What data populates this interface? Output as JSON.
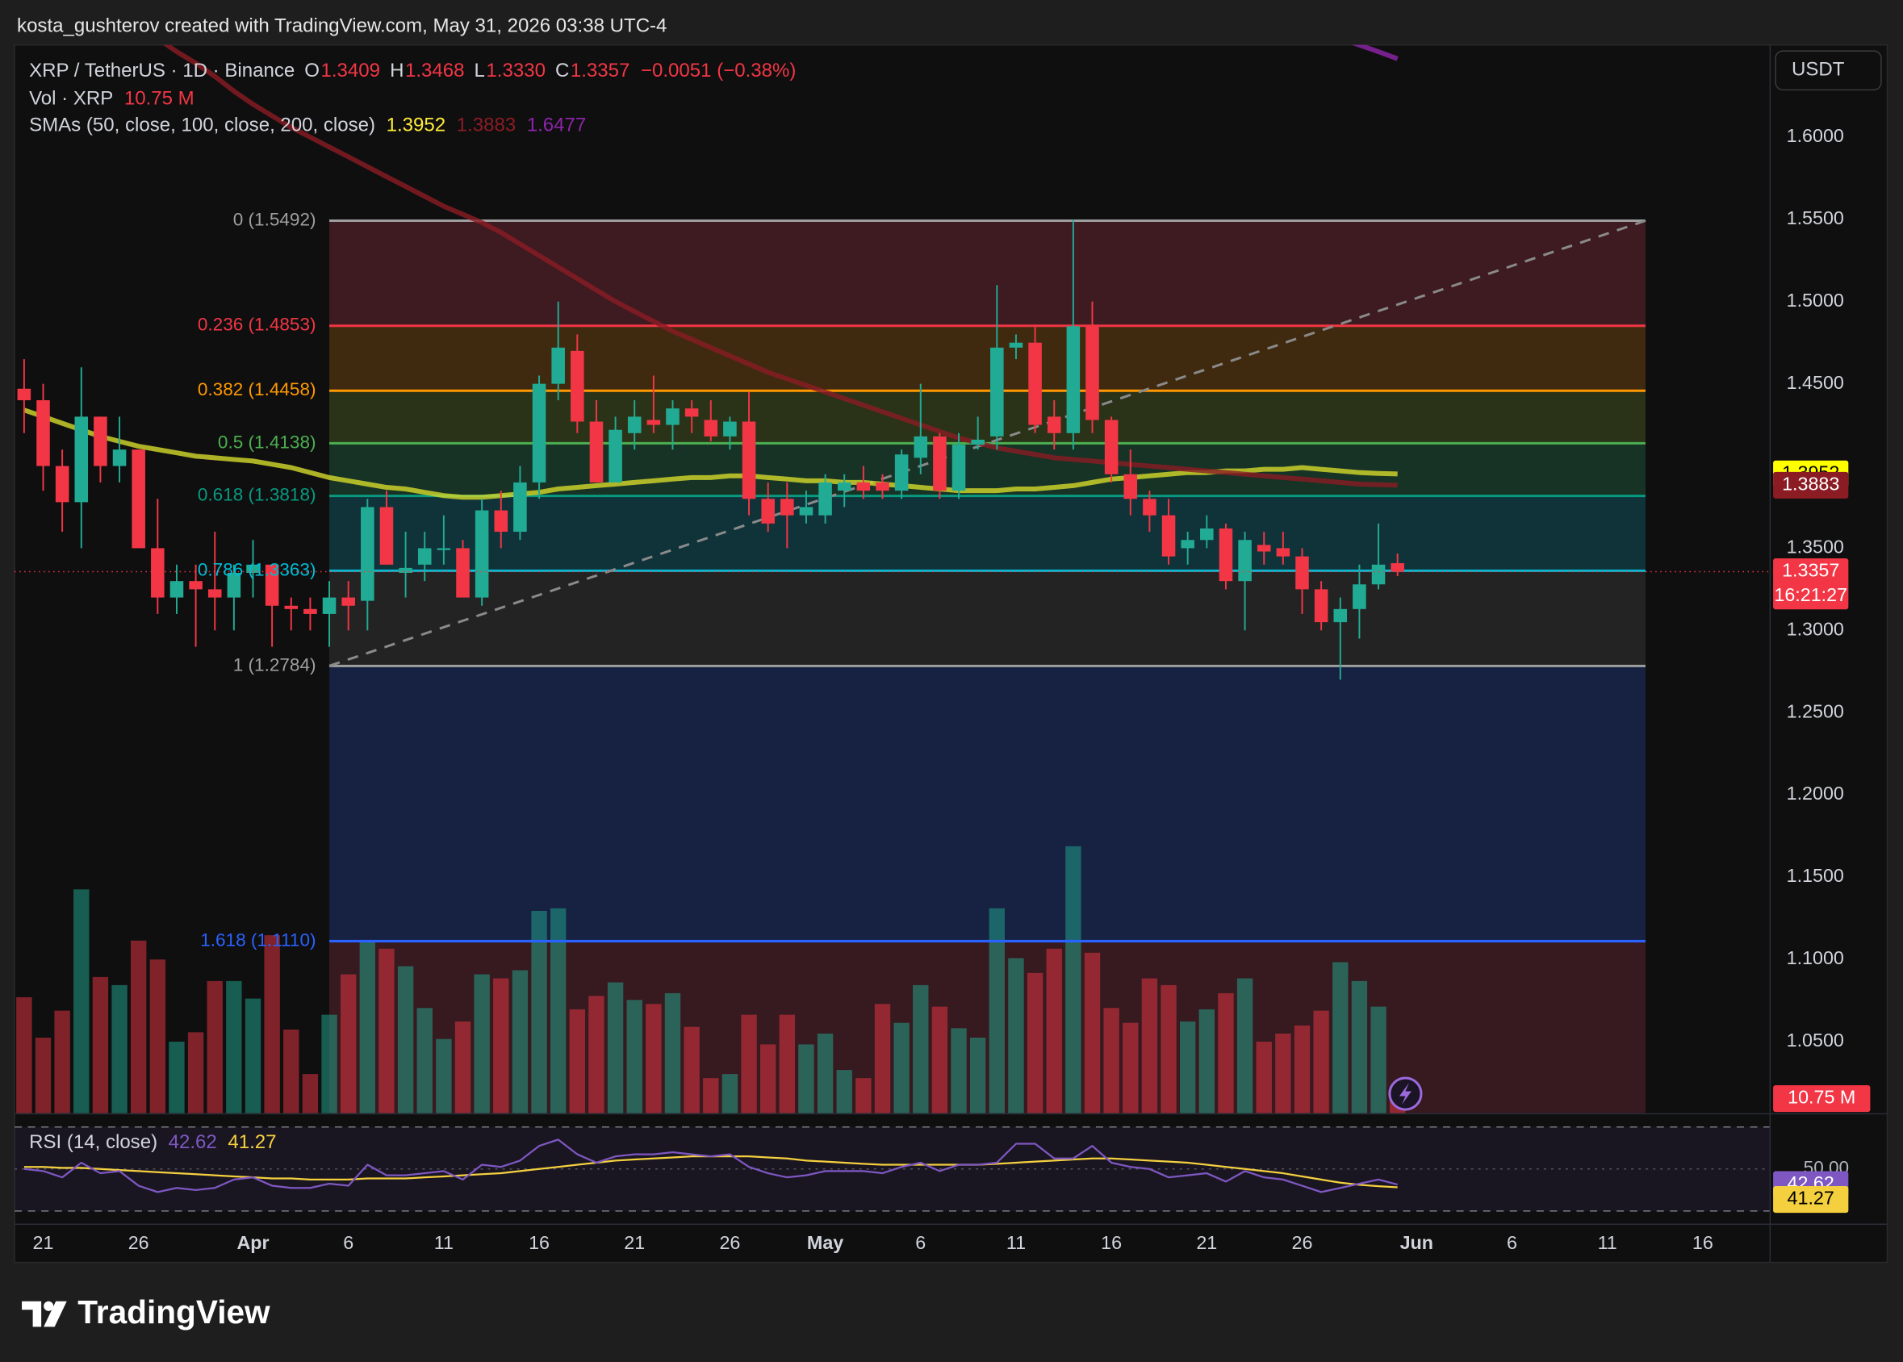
{
  "attribution": "kosta_gushterov created with TradingView.com, May 31, 2026 03:38 UTC-4",
  "currency_button": "USDT",
  "brand": "TradingView",
  "chart_data": {
    "type": "candlestick",
    "legend": {
      "symbol": "XRP / TetherUS · 1D · Binance",
      "ohlc": [
        {
          "label": "O",
          "value": "1.3409"
        },
        {
          "label": "H",
          "value": "1.3468"
        },
        {
          "label": "L",
          "value": "1.3330"
        },
        {
          "label": "C",
          "value": "1.3357"
        }
      ],
      "change": "−0.0051 (−0.38%)",
      "volume_title": "Vol · XRP",
      "volume_value": "10.75 M",
      "sma_title": "SMAs (50, close, 100, close, 200, close)"
    },
    "x": [
      "2026-03-20",
      "2026-03-21",
      "2026-03-22",
      "2026-03-23",
      "2026-03-24",
      "2026-03-25",
      "2026-03-26",
      "2026-03-27",
      "2026-03-28",
      "2026-03-29",
      "2026-03-30",
      "2026-03-31",
      "2026-04-01",
      "2026-04-02",
      "2026-04-03",
      "2026-04-04",
      "2026-04-05",
      "2026-04-06",
      "2026-04-07",
      "2026-04-08",
      "2026-04-09",
      "2026-04-10",
      "2026-04-11",
      "2026-04-12",
      "2026-04-13",
      "2026-04-14",
      "2026-04-15",
      "2026-04-16",
      "2026-04-17",
      "2026-04-18",
      "2026-04-19",
      "2026-04-20",
      "2026-04-21",
      "2026-04-22",
      "2026-04-23",
      "2026-04-24",
      "2026-04-25",
      "2026-04-26",
      "2026-04-27",
      "2026-04-28",
      "2026-04-29",
      "2026-04-30",
      "2026-05-01",
      "2026-05-02",
      "2026-05-03",
      "2026-05-04",
      "2026-05-05",
      "2026-05-06",
      "2026-05-07",
      "2026-05-08",
      "2026-05-09",
      "2026-05-10",
      "2026-05-11",
      "2026-05-12",
      "2026-05-13",
      "2026-05-14",
      "2026-05-15",
      "2026-05-16",
      "2026-05-17",
      "2026-05-18",
      "2026-05-19",
      "2026-05-20",
      "2026-05-21",
      "2026-05-22",
      "2026-05-23",
      "2026-05-24",
      "2026-05-25",
      "2026-05-26",
      "2026-05-27",
      "2026-05-28",
      "2026-05-29",
      "2026-05-30",
      "2026-05-31"
    ],
    "open": [
      1.447,
      1.44,
      1.4,
      1.378,
      1.43,
      1.4,
      1.41,
      1.35,
      1.32,
      1.33,
      1.325,
      1.32,
      1.335,
      1.34,
      1.315,
      1.313,
      1.31,
      1.32,
      1.318,
      1.375,
      1.335,
      1.34,
      1.35,
      1.35,
      1.32,
      1.373,
      1.36,
      1.39,
      1.45,
      1.47,
      1.427,
      1.39,
      1.42,
      1.428,
      1.425,
      1.435,
      1.428,
      1.418,
      1.427,
      1.38,
      1.38,
      1.37,
      1.37,
      1.385,
      1.39,
      1.39,
      1.385,
      1.405,
      1.418,
      1.385,
      1.413,
      1.418,
      1.472,
      1.475,
      1.43,
      1.42,
      1.485,
      1.428,
      1.395,
      1.38,
      1.37,
      1.35,
      1.355,
      1.362,
      1.33,
      1.352,
      1.35,
      1.345,
      1.325,
      1.305,
      1.313,
      1.328,
      1.3409
    ],
    "high": [
      1.465,
      1.45,
      1.41,
      1.46,
      1.43,
      1.43,
      1.41,
      1.38,
      1.34,
      1.34,
      1.36,
      1.34,
      1.355,
      1.34,
      1.32,
      1.32,
      1.33,
      1.33,
      1.38,
      1.385,
      1.36,
      1.36,
      1.37,
      1.355,
      1.38,
      1.385,
      1.4,
      1.455,
      1.5,
      1.48,
      1.44,
      1.43,
      1.44,
      1.455,
      1.44,
      1.44,
      1.44,
      1.43,
      1.445,
      1.39,
      1.39,
      1.385,
      1.395,
      1.395,
      1.4,
      1.395,
      1.41,
      1.45,
      1.42,
      1.42,
      1.43,
      1.51,
      1.48,
      1.485,
      1.44,
      1.55,
      1.5,
      1.43,
      1.41,
      1.385,
      1.38,
      1.36,
      1.37,
      1.365,
      1.36,
      1.36,
      1.36,
      1.35,
      1.33,
      1.32,
      1.34,
      1.365,
      1.3468
    ],
    "low": [
      1.42,
      1.385,
      1.36,
      1.35,
      1.39,
      1.39,
      1.35,
      1.31,
      1.31,
      1.29,
      1.3,
      1.3,
      1.32,
      1.29,
      1.3,
      1.3,
      1.29,
      1.3,
      1.3,
      1.34,
      1.32,
      1.33,
      1.34,
      1.32,
      1.315,
      1.35,
      1.355,
      1.38,
      1.44,
      1.42,
      1.39,
      1.39,
      1.41,
      1.42,
      1.41,
      1.42,
      1.415,
      1.41,
      1.37,
      1.36,
      1.35,
      1.365,
      1.365,
      1.375,
      1.38,
      1.38,
      1.38,
      1.395,
      1.38,
      1.38,
      1.41,
      1.41,
      1.465,
      1.42,
      1.41,
      1.41,
      1.42,
      1.39,
      1.37,
      1.36,
      1.34,
      1.34,
      1.35,
      1.325,
      1.3,
      1.34,
      1.34,
      1.31,
      1.3,
      1.27,
      1.295,
      1.325,
      1.333
    ],
    "close": [
      1.44,
      1.4,
      1.378,
      1.43,
      1.4,
      1.41,
      1.35,
      1.32,
      1.33,
      1.325,
      1.32,
      1.335,
      1.34,
      1.315,
      1.313,
      1.31,
      1.32,
      1.315,
      1.375,
      1.34,
      1.338,
      1.35,
      1.35,
      1.32,
      1.373,
      1.36,
      1.39,
      1.45,
      1.472,
      1.427,
      1.39,
      1.422,
      1.43,
      1.425,
      1.435,
      1.43,
      1.418,
      1.427,
      1.38,
      1.365,
      1.37,
      1.375,
      1.39,
      1.39,
      1.385,
      1.385,
      1.407,
      1.418,
      1.385,
      1.413,
      1.416,
      1.472,
      1.475,
      1.425,
      1.42,
      1.485,
      1.428,
      1.395,
      1.38,
      1.37,
      1.345,
      1.355,
      1.362,
      1.33,
      1.355,
      1.348,
      1.345,
      1.325,
      1.305,
      1.313,
      1.328,
      1.34,
      1.3357
    ],
    "up_color": "#22ab94",
    "down_color": "#f23645",
    "volume": [
      86,
      56,
      76,
      166,
      101,
      95,
      128,
      114,
      53,
      60,
      98,
      98,
      85,
      132,
      62,
      29,
      73,
      103,
      128,
      122,
      109,
      78,
      55,
      68,
      103,
      100,
      106,
      150,
      152,
      77,
      87,
      97,
      84,
      81,
      89,
      64,
      26,
      29,
      73,
      51,
      73,
      51,
      59,
      32,
      26,
      81,
      67,
      95,
      79,
      63,
      56,
      152,
      115,
      104,
      122,
      198,
      119,
      78,
      67,
      100,
      95,
      68,
      77,
      89,
      100,
      53,
      59,
      65,
      76,
      112,
      98,
      79,
      10.75
    ],
    "volume_ylim": [
      0,
      317
    ],
    "sma": [
      {
        "color": "#d4d92b",
        "label": "1.3952",
        "badge": true,
        "values": [
          1.434,
          1.43,
          1.426,
          1.422,
          1.418,
          1.415,
          1.412,
          1.41,
          1.408,
          1.406,
          1.405,
          1.404,
          1.403,
          1.401,
          1.399,
          1.396,
          1.393,
          1.391,
          1.389,
          1.387,
          1.386,
          1.384,
          1.382,
          1.381,
          1.381,
          1.382,
          1.383,
          1.384,
          1.386,
          1.387,
          1.388,
          1.389,
          1.39,
          1.391,
          1.392,
          1.393,
          1.393,
          1.394,
          1.394,
          1.393,
          1.392,
          1.391,
          1.391,
          1.39,
          1.39,
          1.389,
          1.388,
          1.387,
          1.386,
          1.385,
          1.385,
          1.385,
          1.386,
          1.386,
          1.387,
          1.388,
          1.39,
          1.392,
          1.393,
          1.394,
          1.395,
          1.396,
          1.396,
          1.397,
          1.397,
          1.398,
          1.398,
          1.399,
          1.398,
          1.397,
          1.396,
          1.3955,
          1.3952
        ]
      },
      {
        "color": "#8b1c24",
        "label": "1.3883",
        "badge": true,
        "values": [
          1.72,
          1.71,
          1.7,
          1.69,
          1.68,
          1.675,
          1.665,
          1.66,
          1.652,
          1.645,
          1.637,
          1.628,
          1.62,
          1.613,
          1.606,
          1.6,
          1.594,
          1.588,
          1.582,
          1.576,
          1.57,
          1.564,
          1.558,
          1.553,
          1.548,
          1.542,
          1.535,
          1.528,
          1.521,
          1.514,
          1.507,
          1.5,
          1.494,
          1.488,
          1.482,
          1.477,
          1.472,
          1.467,
          1.462,
          1.457,
          1.453,
          1.449,
          1.445,
          1.441,
          1.437,
          1.433,
          1.429,
          1.425,
          1.421,
          1.417,
          1.414,
          1.411,
          1.409,
          1.407,
          1.405,
          1.404,
          1.403,
          1.402,
          1.401,
          1.4,
          1.399,
          1.398,
          1.397,
          1.396,
          1.395,
          1.394,
          1.393,
          1.392,
          1.391,
          1.39,
          1.389,
          1.3887,
          1.3883
        ]
      },
      {
        "color": "#8e24aa",
        "label": "1.6477",
        "badge": false,
        "values": [
          null,
          null,
          null,
          null,
          null,
          null,
          null,
          null,
          null,
          null,
          null,
          null,
          null,
          null,
          null,
          null,
          null,
          null,
          null,
          null,
          null,
          null,
          null,
          null,
          null,
          null,
          null,
          null,
          null,
          null,
          null,
          null,
          null,
          null,
          null,
          null,
          null,
          null,
          null,
          null,
          null,
          null,
          null,
          null,
          null,
          null,
          null,
          null,
          null,
          null,
          null,
          null,
          null,
          null,
          null,
          null,
          null,
          null,
          null,
          null,
          null,
          null,
          null,
          null,
          null,
          null,
          null,
          null,
          1.664,
          1.66,
          1.656,
          1.652,
          1.6477
        ]
      }
    ],
    "xlim": [
      "2026-03-19T12:00:00Z",
      "2026-06-19T12:00:00Z"
    ],
    "xticks": [
      {
        "value": "2026-03-21",
        "label": "21"
      },
      {
        "value": "2026-03-26",
        "label": "26"
      },
      {
        "value": "2026-04-01",
        "label": "Apr"
      },
      {
        "value": "2026-04-06",
        "label": "6"
      },
      {
        "value": "2026-04-11",
        "label": "11"
      },
      {
        "value": "2026-04-16",
        "label": "16"
      },
      {
        "value": "2026-04-21",
        "label": "21"
      },
      {
        "value": "2026-04-26",
        "label": "26"
      },
      {
        "value": "2026-05-01",
        "label": "May"
      },
      {
        "value": "2026-05-06",
        "label": "6"
      },
      {
        "value": "2026-05-11",
        "label": "11"
      },
      {
        "value": "2026-05-16",
        "label": "16"
      },
      {
        "value": "2026-05-21",
        "label": "21"
      },
      {
        "value": "2026-05-26",
        "label": "26"
      },
      {
        "value": "2026-06-01",
        "label": "Jun"
      },
      {
        "value": "2026-06-06",
        "label": "6"
      },
      {
        "value": "2026-06-11",
        "label": "11"
      },
      {
        "value": "2026-06-16",
        "label": "16"
      }
    ],
    "ylim": [
      1.0064,
      1.6561
    ],
    "yticks": [
      {
        "value": 1.6,
        "label": "1.6000"
      },
      {
        "value": 1.55,
        "label": "1.5500"
      },
      {
        "value": 1.5,
        "label": "1.5000"
      },
      {
        "value": 1.45,
        "label": "1.4500"
      },
      {
        "value": 1.35,
        "label": "1.3500"
      },
      {
        "value": 1.3,
        "label": "1.3000"
      },
      {
        "value": 1.25,
        "label": "1.2500"
      },
      {
        "value": 1.2,
        "label": "1.2000"
      },
      {
        "value": 1.15,
        "label": "1.1500"
      },
      {
        "value": 1.1,
        "label": "1.1000"
      },
      {
        "value": 1.05,
        "label": "1.0500"
      }
    ],
    "grid": false,
    "last_price": {
      "value": 1.3357,
      "label": "1.3357",
      "countdown": "16:21:27"
    },
    "fib": {
      "start": "2026-04-05",
      "end": "2026-06-13",
      "trend_color": "#8a8a8a",
      "levels": [
        {
          "label": "0 (1.5492)",
          "price": 1.5492,
          "color": "#9e9e9e",
          "fill": "#3d1b20"
        },
        {
          "label": "0.236 (1.4853)",
          "price": 1.4853,
          "color": "#f23645",
          "fill": "#3f2a10"
        },
        {
          "label": "0.382 (1.4458)",
          "price": 1.4458,
          "color": "#ff9800",
          "fill": "#2a3318"
        },
        {
          "label": "0.5 (1.4138)",
          "price": 1.4138,
          "color": "#4caf50",
          "fill": "#173326"
        },
        {
          "label": "0.618 (1.3818)",
          "price": 1.3818,
          "color": "#089981",
          "fill": "#10333a"
        },
        {
          "label": "0.786 (1.3363)",
          "price": 1.3363,
          "color": "#00bcd4",
          "fill": "#232323"
        },
        {
          "label": "1 (1.2784)",
          "price": 1.2784,
          "color": "#9e9e9e",
          "fill": "#172141"
        },
        {
          "label": "1.618 (1.1110)",
          "price": 1.111,
          "color": "#2962ff",
          "fill": "#361a1f"
        }
      ]
    },
    "rsi": {
      "title": "RSI (14, close)",
      "color": "#7e57c2",
      "ma_color": "#f4d03f",
      "value_label": "42.62",
      "ma_label": "41.27",
      "ylim": [
        24,
        76
      ],
      "yticks": [
        {
          "value": 50,
          "label": "50.00"
        }
      ],
      "bands": [
        70,
        30
      ],
      "values": [
        50,
        49,
        46,
        53,
        48,
        49,
        42,
        39,
        41,
        40,
        41,
        45,
        46,
        42,
        41,
        41,
        43,
        42,
        52,
        47,
        47,
        48,
        49,
        45,
        52,
        51,
        54,
        61,
        64,
        57,
        53,
        56,
        57,
        57,
        58,
        57,
        56,
        57,
        51,
        48,
        46,
        47,
        49,
        49,
        49,
        48,
        51,
        53,
        49,
        52,
        52,
        53,
        62,
        62,
        55,
        55,
        61,
        53,
        51,
        50,
        46,
        47,
        48,
        44,
        49,
        46,
        45,
        42,
        39,
        41,
        43,
        45,
        42.62
      ],
      "ma": [
        51,
        51,
        50.5,
        50.5,
        50,
        49.5,
        49,
        48.5,
        48,
        47.5,
        47,
        46.5,
        46,
        45.5,
        45.5,
        45,
        45,
        45,
        45.5,
        45.5,
        45.5,
        46,
        46.5,
        47,
        47.5,
        48,
        49,
        50,
        51,
        52,
        53,
        54,
        54.5,
        55,
        55.5,
        56,
        56,
        56,
        56,
        55.5,
        55,
        54,
        53.5,
        53,
        52.5,
        52,
        52,
        52,
        52,
        52,
        52,
        52.5,
        53,
        53.5,
        54,
        54.5,
        55,
        55,
        54.5,
        54,
        53.5,
        53,
        52,
        51,
        50,
        49,
        48,
        46.5,
        45,
        43.5,
        42.5,
        41.8,
        41.27
      ]
    }
  }
}
